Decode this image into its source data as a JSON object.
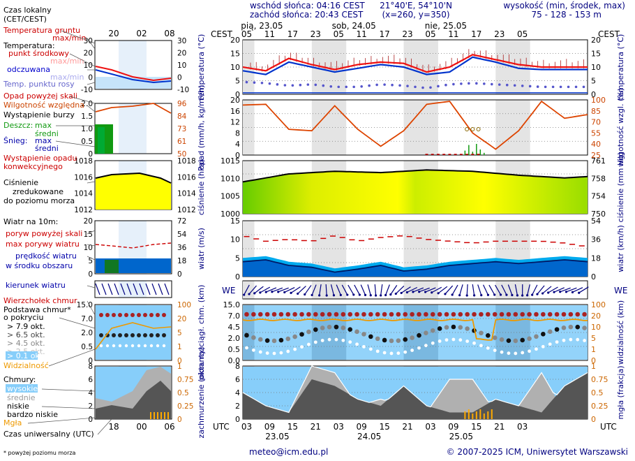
{
  "header": {
    "sunrise": "wschód słońca: 04:16 CEST",
    "sunset": "zachód słońca: 20:43 CEST",
    "coords": "21°40'E, 54°10'N",
    "grid": "(x=260, y=350)",
    "height_label": "wysokość (min, środek, max)",
    "height_values": "75 - 128 - 153 m"
  },
  "legend": {
    "local_time": "Czas lokalny",
    "local_time_zone": "(CET/CEST)",
    "soil_temp": "Temperatura gruntu",
    "max_min": "max/min",
    "temperature": "Temperatura:",
    "mid_point": "punkt środkowy",
    "max_min2": "max/min",
    "felt": "odczuwana",
    "max_min3": "max/min",
    "dew_point": "Temp. punktu rosy",
    "precip_above": "Opad powyżej skali",
    "humidity": "Wilgotność względna",
    "storm": "Wystąpienie burzy",
    "rain": "Deszcz:",
    "max": "max",
    "mid": "średni",
    "snow": "Śnieg:",
    "max2": "max",
    "mid2": "średni",
    "conv": "Wystąpienie opadu",
    "conv2": "konwekcyjnego",
    "pressure1": "Ciśnienie",
    "pressure2": "zredukowane",
    "pressure3": "do poziomu morza",
    "wind_title": "Wiatr na 10m:",
    "gust_above": "poryw powyżej skali",
    "gust_max": "max porywy wiatru",
    "wind_speed1": "prędkość wiatru",
    "wind_speed2": "w środku obszaru",
    "wind_dir": "kierunek wiatru",
    "cloud_top": "Wierzchołek chmur",
    "cloud_base1": "Podstawa chmur*",
    "cloud_base2": "o pokryciu",
    "okt1": "> 7.9 okt.",
    "okt2": "> 6.5 okt.",
    "okt3": "> 4.5 okt.",
    "okt4": "> 2.5 okt.",
    "okt5": "> 0.1 okt.",
    "visibility": "Widzialność",
    "clouds": "Chmury:",
    "high": "wysokie",
    "medium": "średnie",
    "low": "niskie",
    "very_low": "bardzo niskie",
    "fog": "Mgła",
    "utc": "Czas uniwersalny (UTC)",
    "footnote": "* powyżej poziomu morza",
    "mini_top_ticks": [
      "20",
      "02",
      "08"
    ],
    "mini_bottom_ticks": [
      "18",
      "00",
      "06"
    ]
  },
  "axes": {
    "cest": "CEST",
    "utc": "UTC",
    "days": [
      "pią, 23.05",
      "sob, 24.05",
      "nie, 25.05"
    ],
    "utc_days": [
      "23.05",
      "24.05",
      "25.05"
    ],
    "cest_hours": [
      "05",
      "11",
      "17",
      "23",
      "05",
      "11",
      "17",
      "23",
      "05",
      "11",
      "17",
      "23",
      "05"
    ],
    "utc_hours": [
      "03",
      "09",
      "15",
      "21",
      "03",
      "09",
      "15",
      "21",
      "03",
      "09",
      "15",
      "21",
      "03"
    ]
  },
  "panels": {
    "temperature": {
      "left": "temperatura (°C)",
      "right": "temperatura (°C)",
      "ticks": [
        0,
        5,
        10,
        15,
        20
      ],
      "mini_ticks": [
        -10,
        0,
        10,
        20,
        30
      ]
    },
    "precip": {
      "left": "opad (mm/h, kg/m²/h)",
      "right": "wilgotność wzgl. (%)",
      "left_ticks": [
        0,
        4,
        8,
        12,
        16,
        20
      ],
      "right_ticks": [
        25,
        40,
        55,
        70,
        85,
        100
      ],
      "mini_left": [
        "0",
        "0.5",
        "1.0",
        "1.5",
        "2.0"
      ],
      "mini_right": [
        "50",
        "61",
        "73",
        "84",
        "96"
      ]
    },
    "pressure": {
      "left": "ciśnienie (hPa)",
      "right": "ciśnienie (mm Hg)",
      "left_ticks": [
        1000,
        1005,
        1010,
        1015
      ],
      "right_ticks": [
        750,
        754,
        758,
        761
      ],
      "mini_left": [
        1012,
        1014,
        1016,
        1018
      ],
      "mini_right": [
        1012,
        1014,
        1016,
        1018
      ]
    },
    "wind": {
      "left": "wiatr (m/s)",
      "right": "wiatr (km/h)",
      "left_ticks": [
        0,
        5,
        10,
        15
      ],
      "right_ticks": [
        0,
        18,
        36,
        54
      ],
      "mini_left": [
        0,
        5,
        10,
        15,
        20
      ],
      "mini_right": [
        0,
        18,
        36,
        54,
        72
      ]
    },
    "cloud": {
      "left": "pion. rozciągł. chm. (km)",
      "right": "widzialność (km)",
      "left_ticks": [
        "0.0",
        "0.5",
        "2.0",
        "4.5",
        "7.0",
        "15.0"
      ],
      "right_ticks": [
        "0",
        "1",
        "5",
        "10",
        "20",
        "100"
      ],
      "mini_left": [
        "0",
        "0.5",
        "2.0",
        "7.0",
        "15.0"
      ],
      "mini_right": [
        "0",
        "1",
        "5",
        "20",
        "100"
      ]
    },
    "cover": {
      "left": "zachmurzenie (oktanty)",
      "right": "mgła (frakcja)",
      "left_ticks": [
        0,
        2,
        4,
        6,
        8
      ],
      "right_ticks": [
        "0",
        "0.25",
        "0.5",
        "0.75",
        "1"
      ]
    }
  },
  "footer": {
    "email": "meteo@icm.edu.pl",
    "copyright": "© 2007-2025 ICM, Uniwersytet Warszawski"
  },
  "colors": {
    "temp": "#ee1111",
    "felt": "#1133cc",
    "dew": "#6666dd",
    "humidity": "#dd4400",
    "rain": "#119911",
    "wind": "#002288",
    "pressure_high": "#ffff00",
    "pressure_low": "#88dd00",
    "sky": "#87cefa"
  },
  "chart_data": [
    {
      "type": "line",
      "title": "temperatura (°C)",
      "x_hours_utc": [
        0,
        6,
        12,
        18,
        24,
        30,
        36,
        42,
        48,
        54,
        60,
        66,
        72,
        78,
        84,
        90
      ],
      "series": [
        {
          "name": "temperatura",
          "values": [
            11,
            9.5,
            14.5,
            12,
            10,
            12,
            13,
            12.5,
            9,
            11,
            16,
            14,
            12,
            11,
            11,
            11
          ]
        },
        {
          "name": "odczuwana",
          "values": [
            9.5,
            8,
            13,
            11,
            9,
            10.5,
            12,
            11,
            8,
            9,
            15,
            13,
            10.5,
            10,
            10,
            10
          ]
        },
        {
          "name": "temp. punktu rosy",
          "values": [
            5,
            4.5,
            3.5,
            4,
            3,
            3,
            4,
            3.5,
            2.5,
            4,
            4.5,
            4,
            3.5,
            3,
            3,
            3
          ]
        }
      ],
      "ylim": [
        0,
        22
      ]
    },
    {
      "type": "line",
      "title": "opad (mm/h) / wilgotność wzgl. (%)",
      "x_hours_utc": [
        0,
        6,
        12,
        18,
        24,
        30,
        36,
        42,
        48,
        54,
        60,
        66,
        72,
        78,
        84,
        90
      ],
      "series": [
        {
          "name": "wilgotność względna",
          "values": [
            93,
            94,
            60,
            58,
            92,
            60,
            37,
            58,
            94,
            98,
            55,
            33,
            58,
            98,
            75,
            80
          ]
        }
      ],
      "ylim": [
        25,
        100
      ]
    },
    {
      "type": "area",
      "title": "ciśnienie (hPa)",
      "x_hours_utc": [
        0,
        12,
        24,
        36,
        48,
        60,
        72,
        84,
        90
      ],
      "series": [
        {
          "name": "ciśnienie",
          "values": [
            1012,
            1015,
            1016,
            1015.5,
            1016.5,
            1016,
            1014.5,
            1013.5,
            1014
          ]
        }
      ],
      "ylim": [
        1000,
        1020
      ]
    },
    {
      "type": "area",
      "title": "wiatr (m/s)",
      "x_hours_utc": [
        0,
        6,
        12,
        18,
        24,
        30,
        36,
        42,
        48,
        54,
        60,
        66,
        72,
        78,
        84,
        90
      ],
      "series": [
        {
          "name": "prędkość wiatru",
          "values": [
            4,
            4.5,
            3,
            2.5,
            1.2,
            2,
            3,
            1.5,
            2,
            3,
            3.5,
            4,
            3.5,
            4,
            4.5,
            4
          ]
        },
        {
          "name": "max porywy wiatru",
          "values": [
            11,
            9.5,
            10,
            9.5,
            11,
            9.5,
            10.5,
            11,
            10,
            9.5,
            9,
            9.5,
            9.5,
            9.5,
            9,
            8
          ]
        }
      ],
      "ylim": [
        0,
        15
      ]
    },
    {
      "type": "area",
      "title": "zachmurzenie (oktanty)",
      "x_hours_utc": [
        0,
        6,
        12,
        18,
        24,
        30,
        36,
        42,
        48,
        54,
        60,
        66,
        72,
        78,
        84,
        90
      ],
      "series": [
        {
          "name": "wysokie",
          "values": [
            2,
            1,
            1,
            8,
            7,
            2,
            3,
            2,
            1,
            6,
            6,
            1,
            2,
            7,
            1,
            2
          ]
        },
        {
          "name": "niskie",
          "values": [
            4,
            2,
            1,
            6,
            5,
            3,
            2,
            5,
            2,
            1,
            1,
            3,
            2,
            1,
            5,
            7
          ]
        }
      ],
      "ylim": [
        0,
        8
      ]
    }
  ]
}
